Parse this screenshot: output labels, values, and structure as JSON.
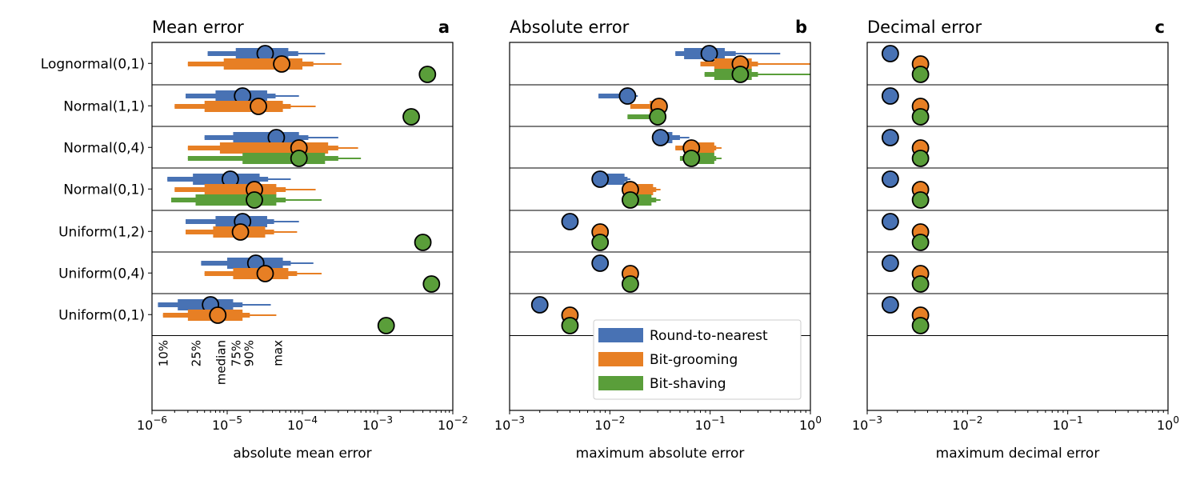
{
  "colors": {
    "rtn": "#4872b4",
    "groom": "#e77f24",
    "shave": "#5a9e3a"
  },
  "distributions": [
    "Lognormal(0,1)",
    "Normal(1,1)",
    "Normal(0,4)",
    "Normal(0,1)",
    "Uniform(1,2)",
    "Uniform(0,4)",
    "Uniform(0,1)"
  ],
  "legend": [
    "Round-to-nearest",
    "Bit-grooming",
    "Bit-shaving"
  ],
  "percentile_labels": [
    "10%",
    "25%",
    "median",
    "75%",
    "90%",
    "max"
  ],
  "chart_data": [
    {
      "type": "box",
      "title": "Mean error",
      "panel_letter": "a",
      "xlabel": "absolute mean error",
      "xscale": "log",
      "xlim": [
        1e-06,
        0.01
      ],
      "xtick_labels": [
        "10",
        "10",
        "10",
        "10",
        "10"
      ],
      "xtick_exponents": [
        "−6",
        "−5",
        "−4",
        "−3",
        "−2"
      ],
      "xtick_values": [
        1e-06,
        1e-05,
        0.0001,
        0.001,
        0.01
      ],
      "series": [
        {
          "name": "Round-to-nearest",
          "stats": [
            [
              5.5e-06,
              1.3e-05,
              3.2e-05,
              6.5e-05,
              8.8e-05,
              0.0002
            ],
            [
              2.8e-06,
              7e-06,
              1.6e-05,
              3.4e-05,
              4.4e-05,
              9e-05
            ],
            [
              5e-06,
              1.2e-05,
              2.8e-05,
              9e-05,
              0.00012,
              0.0003
            ],
            [
              1.6e-06,
              3.5e-06,
              1.1e-05,
              2.7e-05,
              3.5e-05,
              7e-05
            ],
            [
              2.8e-06,
              7e-06,
              1.6e-05,
              3.4e-05,
              4.2e-05,
              9e-05
            ],
            [
              4.5e-06,
              1e-05,
              2.4e-05,
              5.5e-05,
              7e-05,
              0.00014
            ],
            [
              1.2e-06,
              2.2e-06,
              6e-06,
              1.2e-05,
              1.6e-05,
              3.8e-05
            ]
          ],
          "mean": [
            3.2e-05,
            1.6e-05,
            4.5e-05,
            1.1e-05,
            1.6e-05,
            2.4e-05,
            6e-06
          ]
        },
        {
          "name": "Bit-grooming",
          "stats": [
            [
              3e-06,
              9e-06,
              2e-05,
              0.0001,
              0.00014,
              0.00033
            ],
            [
              2e-06,
              5e-06,
              1e-05,
              5.5e-05,
              7e-05,
              0.00015
            ],
            [
              3e-06,
              8e-06,
              1.6e-05,
              0.00022,
              0.0003,
              0.00055
            ],
            [
              2e-06,
              5e-06,
              1e-05,
              4.5e-05,
              6e-05,
              0.00015
            ],
            [
              2.8e-06,
              6.5e-06,
              1.5e-05,
              3.2e-05,
              4.2e-05,
              8.5e-05
            ],
            [
              5e-06,
              1.2e-05,
              3e-05,
              6.5e-05,
              8.5e-05,
              0.00018
            ],
            [
              1.4e-06,
              3e-06,
              7.5e-06,
              1.6e-05,
              2e-05,
              4.5e-05
            ]
          ],
          "mean": [
            5.3e-05,
            2.6e-05,
            9e-05,
            2.3e-05,
            1.5e-05,
            3.2e-05,
            7.5e-06
          ]
        },
        {
          "name": "Bit-shaving",
          "stats": [
            null,
            null,
            [
              3e-06,
              1.6e-05,
              3.8e-05,
              0.0002,
              0.0003,
              0.0006
            ],
            [
              1.8e-06,
              3.8e-06,
              9e-06,
              4.5e-05,
              6e-05,
              0.00018
            ],
            null,
            null,
            null
          ],
          "mean": [
            0.0046,
            0.0028,
            9e-05,
            2.3e-05,
            0.004,
            0.0052,
            0.0013
          ]
        }
      ]
    },
    {
      "type": "box",
      "title": "Absolute error",
      "panel_letter": "b",
      "xlabel": "maximum absolute error",
      "xscale": "log",
      "xlim": [
        0.001,
        1
      ],
      "xtick_labels": [
        "10",
        "10",
        "10",
        "10"
      ],
      "xtick_exponents": [
        "−3",
        "−2",
        "−1",
        "0"
      ],
      "xtick_values": [
        0.001,
        0.01,
        0.1,
        1
      ],
      "series": [
        {
          "name": "Round-to-nearest",
          "stats": [
            [
              0.045,
              0.055,
              0.098,
              0.14,
              0.18,
              0.5
            ],
            [
              0.0077,
              0.013,
              0.0155,
              0.0165,
              0.017,
              0.019
            ],
            [
              0.032,
              0.033,
              0.034,
              0.042,
              0.05,
              0.062
            ],
            [
              0.0078,
              0.008,
              0.0082,
              0.014,
              0.015,
              0.016
            ],
            null,
            null,
            null
          ],
          "mean": [
            0.098,
            0.015,
            0.032,
            0.008,
            0.004,
            0.008,
            0.002
          ]
        },
        {
          "name": "Bit-grooming",
          "stats": [
            [
              0.08,
              0.11,
              0.12,
              0.26,
              0.3,
              1.0
            ],
            [
              0.016,
              0.025,
              0.027,
              0.03,
              0.031,
              0.033
            ],
            [
              0.045,
              0.06,
              0.065,
              0.11,
              0.115,
              0.13
            ],
            [
              0.015,
              0.0155,
              0.016,
              0.027,
              0.029,
              0.032
            ],
            null,
            null,
            null
          ],
          "mean": [
            0.2,
            0.031,
            0.065,
            0.016,
            0.008,
            0.016,
            0.004
          ]
        },
        {
          "name": "Bit-shaving",
          "stats": [
            [
              0.088,
              0.11,
              0.12,
              0.26,
              0.3,
              1.0
            ],
            [
              0.015,
              0.026,
              0.027,
              0.03,
              0.031,
              0.032
            ],
            [
              0.05,
              0.06,
              0.065,
              0.11,
              0.115,
              0.13
            ],
            [
              0.016,
              0.016,
              0.0165,
              0.026,
              0.029,
              0.032
            ],
            null,
            null,
            null
          ],
          "mean": [
            0.2,
            0.03,
            0.065,
            0.016,
            0.008,
            0.016,
            0.004
          ]
        }
      ]
    },
    {
      "type": "box",
      "title": "Decimal error",
      "panel_letter": "c",
      "xlabel": "maximum decimal error",
      "xscale": "log",
      "xlim": [
        0.001,
        1
      ],
      "xtick_labels": [
        "10",
        "10",
        "10",
        "10"
      ],
      "xtick_exponents": [
        "−3",
        "−2",
        "−1",
        "0"
      ],
      "xtick_values": [
        0.001,
        0.01,
        0.1,
        1
      ],
      "series": [
        {
          "name": "Round-to-nearest",
          "stats": [
            null,
            null,
            null,
            null,
            null,
            null,
            null
          ],
          "mean": [
            0.0017,
            0.0017,
            0.0017,
            0.0017,
            0.0017,
            0.0017,
            0.0017
          ]
        },
        {
          "name": "Bit-grooming",
          "stats": [
            null,
            null,
            null,
            null,
            null,
            null,
            null
          ],
          "mean": [
            0.0034,
            0.0034,
            0.0034,
            0.0034,
            0.0034,
            0.0034,
            0.0034
          ]
        },
        {
          "name": "Bit-shaving",
          "stats": [
            null,
            null,
            null,
            null,
            null,
            null,
            null
          ],
          "mean": [
            0.0034,
            0.0034,
            0.0034,
            0.0034,
            0.0034,
            0.0034,
            0.0034
          ]
        }
      ]
    }
  ]
}
